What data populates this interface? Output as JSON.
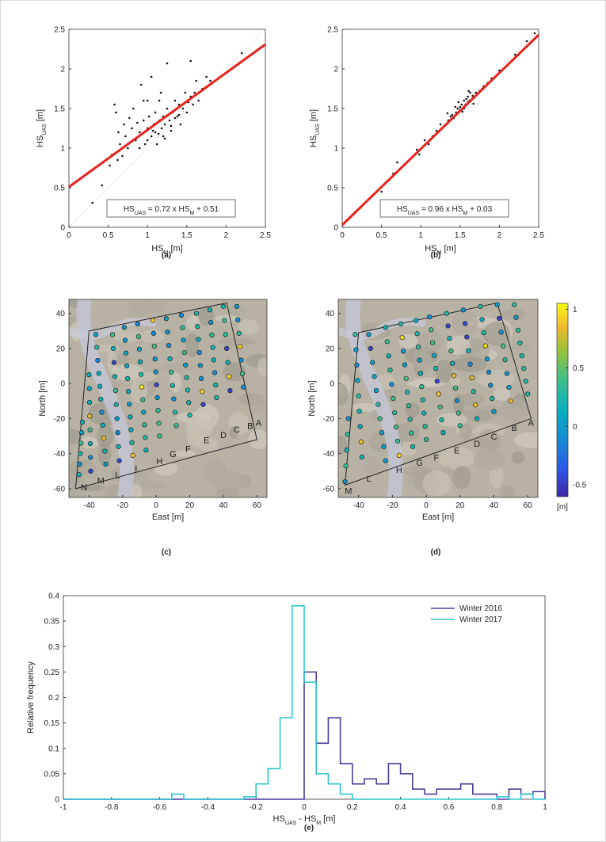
{
  "panel_labels": [
    "(a)",
    "(b)",
    "(c)",
    "(d)",
    "(e)"
  ],
  "chart_data": [
    {
      "type": "scatter",
      "panel": "(a)",
      "xlabel": "HS_M [m]",
      "ylabel": "HS_UAS [m]",
      "xlim": [
        0,
        2.5
      ],
      "ylim": [
        0,
        2.5
      ],
      "xticks": [
        0,
        0.5,
        1,
        1.5,
        2,
        2.5
      ],
      "yticks": [
        0,
        0.5,
        1,
        1.5,
        2,
        2.5
      ],
      "annotation": "HS_UAS = 0.72 x HS_M + 0.51",
      "fit": {
        "slope": 0.72,
        "intercept": 0.51,
        "color": "#e8231e"
      },
      "points": [
        [
          0.3,
          0.31
        ],
        [
          0.42,
          0.53
        ],
        [
          0.52,
          0.78
        ],
        [
          0.55,
          0.92
        ],
        [
          0.58,
          1.55
        ],
        [
          0.6,
          1.45
        ],
        [
          0.62,
          0.85
        ],
        [
          0.63,
          1.2
        ],
        [
          0.65,
          1.05
        ],
        [
          0.68,
          0.9
        ],
        [
          0.7,
          1.3
        ],
        [
          0.72,
          1.15
        ],
        [
          0.75,
          1.0
        ],
        [
          0.77,
          1.38
        ],
        [
          0.8,
          1.25
        ],
        [
          0.82,
          1.5
        ],
        [
          0.85,
          1.1
        ],
        [
          0.87,
          1.32
        ],
        [
          0.9,
          1.2
        ],
        [
          0.92,
          1.8
        ],
        [
          0.95,
          1.35
        ],
        [
          0.97,
          1.05
        ],
        [
          1.0,
          1.25
        ],
        [
          1.0,
          1.6
        ],
        [
          1.02,
          1.4
        ],
        [
          1.05,
          1.15
        ],
        [
          1.05,
          1.9
        ],
        [
          1.08,
          1.3
        ],
        [
          1.1,
          1.45
        ],
        [
          1.1,
          1.2
        ],
        [
          1.12,
          1.05
        ],
        [
          1.15,
          1.35
        ],
        [
          1.15,
          1.6
        ],
        [
          1.18,
          1.25
        ],
        [
          1.2,
          1.4
        ],
        [
          1.2,
          1.15
        ],
        [
          1.22,
          1.3
        ],
        [
          1.25,
          1.5
        ],
        [
          1.25,
          2.07
        ],
        [
          1.28,
          1.35
        ],
        [
          1.3,
          1.28
        ],
        [
          1.32,
          1.45
        ],
        [
          1.35,
          1.6
        ],
        [
          1.38,
          1.4
        ],
        [
          1.4,
          1.55
        ],
        [
          1.42,
          1.3
        ],
        [
          1.45,
          1.5
        ],
        [
          1.48,
          1.7
        ],
        [
          1.5,
          1.45
        ],
        [
          1.52,
          1.58
        ],
        [
          1.55,
          2.1
        ],
        [
          1.55,
          1.65
        ],
        [
          1.58,
          1.55
        ],
        [
          1.6,
          1.7
        ],
        [
          1.62,
          1.85
        ],
        [
          1.65,
          1.6
        ],
        [
          1.7,
          1.75
        ],
        [
          1.75,
          1.9
        ],
        [
          1.8,
          1.85
        ],
        [
          2.2,
          2.2
        ],
        [
          0.9,
          1.0
        ],
        [
          1.0,
          1.1
        ],
        [
          1.07,
          1.22
        ],
        [
          1.14,
          1.18
        ],
        [
          1.22,
          1.12
        ],
        [
          1.3,
          1.22
        ],
        [
          1.35,
          1.38
        ],
        [
          1.4,
          1.42
        ],
        [
          0.95,
          1.6
        ],
        [
          1.17,
          1.7
        ]
      ]
    },
    {
      "type": "scatter",
      "panel": "(b)",
      "xlabel": "HS_M [m]",
      "ylabel": "HS_UAS [m]",
      "xlim": [
        0,
        2.5
      ],
      "ylim": [
        0,
        2.5
      ],
      "xticks": [
        0,
        0.5,
        1,
        1.5,
        2,
        2.5
      ],
      "yticks": [
        0,
        0.5,
        1,
        1.5,
        2,
        2.5
      ],
      "annotation": "HS_UAS = 0.96 x HS_M + 0.03",
      "fit": {
        "slope": 0.96,
        "intercept": 0.03,
        "color": "#e8231e"
      },
      "points": [
        [
          0.5,
          0.45
        ],
        [
          0.65,
          0.68
        ],
        [
          0.7,
          0.82
        ],
        [
          0.95,
          0.98
        ],
        [
          1.05,
          1.1
        ],
        [
          1.15,
          1.15
        ],
        [
          1.2,
          1.22
        ],
        [
          1.3,
          1.28
        ],
        [
          1.35,
          1.35
        ],
        [
          1.38,
          1.4
        ],
        [
          1.4,
          1.42
        ],
        [
          1.42,
          1.38
        ],
        [
          1.45,
          1.45
        ],
        [
          1.47,
          1.5
        ],
        [
          1.5,
          1.48
        ],
        [
          1.5,
          1.52
        ],
        [
          1.52,
          1.55
        ],
        [
          1.55,
          1.5
        ],
        [
          1.55,
          1.6
        ],
        [
          1.57,
          1.55
        ],
        [
          1.58,
          1.62
        ],
        [
          1.6,
          1.58
        ],
        [
          1.6,
          1.65
        ],
        [
          1.62,
          1.6
        ],
        [
          1.63,
          1.7
        ],
        [
          1.65,
          1.62
        ],
        [
          1.66,
          1.66
        ],
        [
          1.68,
          1.64
        ],
        [
          1.7,
          1.7
        ],
        [
          1.72,
          1.68
        ],
        [
          1.75,
          1.72
        ],
        [
          1.78,
          1.75
        ],
        [
          1.8,
          1.78
        ],
        [
          1.85,
          1.82
        ],
        [
          1.9,
          1.88
        ],
        [
          1.95,
          1.9
        ],
        [
          2.0,
          1.98
        ],
        [
          2.1,
          2.05
        ],
        [
          2.2,
          2.18
        ],
        [
          2.35,
          2.35
        ],
        [
          2.45,
          2.45
        ],
        [
          1.48,
          1.58
        ],
        [
          1.53,
          1.46
        ],
        [
          1.61,
          1.72
        ],
        [
          1.67,
          1.56
        ],
        [
          1.44,
          1.52
        ],
        [
          1.34,
          1.44
        ],
        [
          1.25,
          1.3
        ],
        [
          1.1,
          1.05
        ],
        [
          0.98,
          0.92
        ]
      ]
    },
    {
      "type": "scatter",
      "panel": "(c)",
      "xlabel": "East [m]",
      "ylabel": "North [m]",
      "xlim": [
        -52,
        66
      ],
      "ylim": [
        -65,
        48
      ],
      "xticks": [
        -40,
        -20,
        0,
        20,
        40,
        60
      ],
      "yticks": [
        -60,
        -40,
        -20,
        0,
        20,
        40
      ],
      "transect_labels": [
        "N",
        "M",
        "L",
        "I",
        "H",
        "G",
        "F",
        "E",
        "D",
        "C",
        "B",
        "A"
      ]
    },
    {
      "type": "scatter",
      "panel": "(d)",
      "xlabel": "East [m]",
      "ylabel": "North [m]",
      "xlim": [
        -52,
        66
      ],
      "ylim": [
        -65,
        48
      ],
      "xticks": [
        -40,
        -20,
        0,
        20,
        40,
        60
      ],
      "yticks": [
        -60,
        -40,
        -20,
        0,
        20,
        40
      ],
      "transect_labels": [
        "M",
        "L",
        "H",
        "G",
        "F",
        "E",
        "D",
        "C",
        "B",
        "A"
      ],
      "colorbar": {
        "ticks": [
          "1",
          "0.5",
          "0",
          "-0.5"
        ],
        "unit": "[m]",
        "range": [
          -0.6,
          1.05
        ]
      }
    },
    {
      "type": "line",
      "panel": "(e)",
      "xlabel": "HS_UAS - HS_M [m]",
      "ylabel": "Relative frequency",
      "xlim": [
        -1,
        1
      ],
      "ylim": [
        0,
        0.4
      ],
      "xticks": [
        "-1",
        "-0.8",
        "-0.6",
        "-0.4",
        "-0.2",
        "0",
        "0.2",
        "0.4",
        "0.6",
        "0.8",
        "1"
      ],
      "yticks": [
        "0",
        "0.05",
        "0.1",
        "0.15",
        "0.2",
        "0.25",
        "0.3",
        "0.35",
        "0.4"
      ],
      "legend_position": "top-right",
      "bin_edges": [
        -1.0,
        -0.95,
        -0.9,
        -0.85,
        -0.8,
        -0.75,
        -0.7,
        -0.65,
        -0.6,
        -0.55,
        -0.5,
        -0.45,
        -0.4,
        -0.35,
        -0.3,
        -0.25,
        -0.2,
        -0.15,
        -0.1,
        -0.05,
        0.0,
        0.05,
        0.1,
        0.15,
        0.2,
        0.25,
        0.3,
        0.35,
        0.4,
        0.45,
        0.5,
        0.55,
        0.6,
        0.65,
        0.7,
        0.75,
        0.8,
        0.85,
        0.9,
        0.95,
        1.0
      ],
      "series": [
        {
          "name": "Winter 2016",
          "color": "#4b3a9a",
          "values": [
            0,
            0,
            0,
            0,
            0,
            0,
            0,
            0,
            0,
            0,
            0,
            0,
            0,
            0,
            0,
            0,
            0,
            0,
            0,
            0,
            0.25,
            0.11,
            0.16,
            0.07,
            0.03,
            0.04,
            0.03,
            0.07,
            0.05,
            0.02,
            0.01,
            0.02,
            0.02,
            0.03,
            0.01,
            0.01,
            0,
            0.02,
            0.01,
            0.015
          ]
        },
        {
          "name": "Winter 2017",
          "color": "#2fc4d0",
          "values": [
            0,
            0,
            0,
            0,
            0,
            0,
            0,
            0,
            0,
            0.01,
            0,
            0,
            0,
            0,
            0,
            0.005,
            0.03,
            0.06,
            0.16,
            0.38,
            0.23,
            0.05,
            0.03,
            0.01,
            0,
            0,
            0,
            0,
            0,
            0,
            0,
            0,
            0,
            0,
            0,
            0,
            0.005,
            0,
            0.01,
            0
          ]
        }
      ]
    }
  ]
}
